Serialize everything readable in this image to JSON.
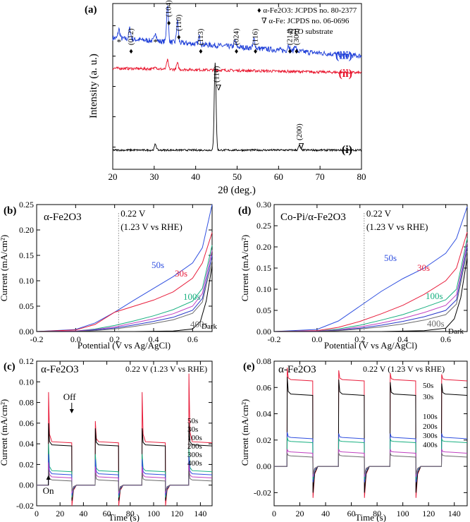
{
  "chart_data": [
    {
      "id": "a",
      "panel_label": "(a)",
      "type": "line",
      "title": "",
      "xlabel": "2θ (deg.)",
      "ylabel": "Intensity (a. u.)",
      "xlim": [
        20,
        80
      ],
      "xticks": [
        20,
        30,
        40,
        50,
        60,
        70,
        80
      ],
      "y_ticks_labeled": false,
      "legend": [
        "♦ α-Fe2O3: JCPDS no. 80-2377",
        "∇ α-Fe: JCPDS no. 06-0696",
        "*ITO substrate"
      ],
      "peak_labels_hematite": [
        {
          "label": "(012)",
          "x": 24.1
        },
        {
          "label": "(104)",
          "x": 33.2
        },
        {
          "label": "(110)",
          "x": 35.6
        },
        {
          "label": "(113)",
          "x": 40.9
        },
        {
          "label": "(024)",
          "x": 49.5
        },
        {
          "label": "(116)",
          "x": 54.1
        },
        {
          "label": "(214)",
          "x": 62.4
        },
        {
          "label": "(300)",
          "x": 64.0
        }
      ],
      "peak_labels_iron": [
        {
          "label": "(110)",
          "x": 44.7
        },
        {
          "label": "(200)",
          "x": 65.0
        }
      ],
      "ito_peaks": [
        21.5,
        30.3
      ],
      "series": [
        {
          "name": "(iii)",
          "color": "#1f3fd8",
          "baseline": 0.82,
          "slope": -0.12,
          "peaks": [
            [
              21.5,
              0.06
            ],
            [
              24.1,
              0.07
            ],
            [
              30.3,
              0.06
            ],
            [
              33.2,
              0.25
            ],
            [
              35.6,
              0.14
            ],
            [
              40.9,
              0.05
            ],
            [
              49.5,
              0.04
            ],
            [
              54.1,
              0.06
            ],
            [
              62.4,
              0.04
            ],
            [
              64.0,
              0.04
            ]
          ]
        },
        {
          "name": "(ii)",
          "color": "#e8132b",
          "baseline": 0.62,
          "slope": -0.03,
          "peaks": [
            [
              33.2,
              0.06
            ],
            [
              35.6,
              0.04
            ],
            [
              30.3,
              0.02
            ]
          ]
        },
        {
          "name": "(i)",
          "color": "#000000",
          "baseline": 0.08,
          "slope": 0.0,
          "peaks": [
            [
              30.3,
              0.04
            ],
            [
              44.7,
              0.58
            ],
            [
              65.0,
              0.03
            ]
          ]
        }
      ]
    },
    {
      "id": "b",
      "panel_label": "(b)",
      "type": "line",
      "title": "α-Fe2O3",
      "xlabel": "Potential (V vs Ag/AgCl)",
      "ylabel": "Current (mA/cm²)",
      "xlim": [
        -0.2,
        0.7
      ],
      "ylim": [
        0,
        0.25
      ],
      "xticks": [
        -0.2,
        0.0,
        0.2,
        0.4,
        0.6
      ],
      "yticks": [
        0.0,
        0.05,
        0.1,
        0.15,
        0.2,
        0.25
      ],
      "marker_line": {
        "x": 0.22,
        "label1": "0.22 V",
        "label2": "(1.23 V vs RHE)"
      },
      "series": [
        {
          "name": "50s",
          "color": "#3050e0",
          "points": [
            [
              -0.2,
              0
            ],
            [
              0.0,
              0.004
            ],
            [
              0.1,
              0.017
            ],
            [
              0.2,
              0.038
            ],
            [
              0.3,
              0.062
            ],
            [
              0.4,
              0.085
            ],
            [
              0.5,
              0.108
            ],
            [
              0.6,
              0.135
            ],
            [
              0.65,
              0.165
            ],
            [
              0.7,
              0.25
            ]
          ]
        },
        {
          "name": "30s",
          "color": "#e81e3c",
          "points": [
            [
              -0.2,
              0
            ],
            [
              0.0,
              0.003
            ],
            [
              0.1,
              0.014
            ],
            [
              0.2,
              0.038
            ],
            [
              0.3,
              0.05
            ],
            [
              0.4,
              0.062
            ],
            [
              0.5,
              0.078
            ],
            [
              0.6,
              0.105
            ],
            [
              0.65,
              0.135
            ],
            [
              0.7,
              0.195
            ]
          ]
        },
        {
          "name": "100s",
          "color": "#18b080",
          "points": [
            [
              -0.2,
              0
            ],
            [
              0.0,
              0.001
            ],
            [
              0.1,
              0.005
            ],
            [
              0.2,
              0.012
            ],
            [
              0.3,
              0.021
            ],
            [
              0.4,
              0.031
            ],
            [
              0.5,
              0.043
            ],
            [
              0.6,
              0.06
            ],
            [
              0.65,
              0.085
            ],
            [
              0.7,
              0.17
            ]
          ]
        },
        {
          "name": "200s",
          "color": "#c040c0",
          "points": [
            [
              -0.2,
              0
            ],
            [
              0.0,
              0.001
            ],
            [
              0.1,
              0.004
            ],
            [
              0.2,
              0.009
            ],
            [
              0.3,
              0.017
            ],
            [
              0.4,
              0.025
            ],
            [
              0.5,
              0.035
            ],
            [
              0.6,
              0.05
            ],
            [
              0.65,
              0.075
            ],
            [
              0.7,
              0.16
            ]
          ]
        },
        {
          "name": "300s",
          "color": "#2838c8",
          "points": [
            [
              -0.2,
              0
            ],
            [
              0.0,
              0.0
            ],
            [
              0.1,
              0.003
            ],
            [
              0.2,
              0.007
            ],
            [
              0.3,
              0.013
            ],
            [
              0.4,
              0.02
            ],
            [
              0.5,
              0.028
            ],
            [
              0.6,
              0.042
            ],
            [
              0.65,
              0.065
            ],
            [
              0.7,
              0.15
            ]
          ]
        },
        {
          "name": "400s",
          "color": "#6b6b6b",
          "points": [
            [
              -0.2,
              0
            ],
            [
              0.0,
              0.0
            ],
            [
              0.1,
              0.002
            ],
            [
              0.2,
              0.005
            ],
            [
              0.3,
              0.01
            ],
            [
              0.4,
              0.016
            ],
            [
              0.5,
              0.023
            ],
            [
              0.6,
              0.036
            ],
            [
              0.65,
              0.058
            ],
            [
              0.7,
              0.14
            ]
          ]
        },
        {
          "name": "Dark",
          "color": "#000000",
          "points": [
            [
              -0.2,
              0
            ],
            [
              0.3,
              0
            ],
            [
              0.5,
              0.001
            ],
            [
              0.6,
              0.005
            ],
            [
              0.64,
              0.02
            ],
            [
              0.67,
              0.06
            ],
            [
              0.7,
              0.13
            ]
          ]
        }
      ],
      "labels": [
        "50s",
        "30s",
        "100s",
        "400s",
        "Dark"
      ]
    },
    {
      "id": "d",
      "panel_label": "(d)",
      "type": "line",
      "title": "Co-Pi/α-Fe2O3",
      "xlabel": "Potential (V vs Ag/AgCl)",
      "ylabel": "Current (mA/cm²)",
      "xlim": [
        -0.2,
        0.7
      ],
      "ylim": [
        0,
        0.3
      ],
      "xticks": [
        -0.2,
        0.0,
        0.2,
        0.4,
        0.6
      ],
      "yticks": [
        0.0,
        0.05,
        0.1,
        0.15,
        0.2,
        0.25,
        0.3
      ],
      "marker_line": {
        "x": 0.22,
        "label1": "0.22 V",
        "label2": "(1.23 V vs RHE)"
      },
      "series": [
        {
          "name": "50s",
          "color": "#3050e0",
          "points": [
            [
              -0.2,
              0
            ],
            [
              0.0,
              0.005
            ],
            [
              0.1,
              0.025
            ],
            [
              0.2,
              0.06
            ],
            [
              0.3,
              0.095
            ],
            [
              0.4,
              0.125
            ],
            [
              0.5,
              0.15
            ],
            [
              0.6,
              0.185
            ],
            [
              0.65,
              0.22
            ],
            [
              0.7,
              0.295
            ]
          ]
        },
        {
          "name": "30s",
          "color": "#e81e3c",
          "points": [
            [
              -0.2,
              0
            ],
            [
              0.0,
              0.002
            ],
            [
              0.1,
              0.01
            ],
            [
              0.2,
              0.024
            ],
            [
              0.3,
              0.042
            ],
            [
              0.4,
              0.062
            ],
            [
              0.5,
              0.088
            ],
            [
              0.6,
              0.12
            ],
            [
              0.65,
              0.15
            ],
            [
              0.7,
              0.235
            ]
          ]
        },
        {
          "name": "100s",
          "color": "#18b080",
          "points": [
            [
              -0.2,
              0
            ],
            [
              0.0,
              0.001
            ],
            [
              0.1,
              0.006
            ],
            [
              0.2,
              0.015
            ],
            [
              0.3,
              0.027
            ],
            [
              0.4,
              0.04
            ],
            [
              0.5,
              0.057
            ],
            [
              0.6,
              0.075
            ],
            [
              0.65,
              0.1
            ],
            [
              0.7,
              0.22
            ]
          ]
        },
        {
          "name": "200s",
          "color": "#c040c0",
          "points": [
            [
              -0.2,
              0
            ],
            [
              0.0,
              0.001
            ],
            [
              0.1,
              0.004
            ],
            [
              0.2,
              0.011
            ],
            [
              0.3,
              0.02
            ],
            [
              0.4,
              0.031
            ],
            [
              0.5,
              0.045
            ],
            [
              0.6,
              0.062
            ],
            [
              0.65,
              0.087
            ],
            [
              0.7,
              0.21
            ]
          ]
        },
        {
          "name": "300s",
          "color": "#2838c8",
          "points": [
            [
              -0.2,
              0
            ],
            [
              0.0,
              0.0
            ],
            [
              0.1,
              0.003
            ],
            [
              0.2,
              0.008
            ],
            [
              0.3,
              0.015
            ],
            [
              0.4,
              0.024
            ],
            [
              0.5,
              0.035
            ],
            [
              0.6,
              0.05
            ],
            [
              0.65,
              0.075
            ],
            [
              0.7,
              0.2
            ]
          ]
        },
        {
          "name": "400s",
          "color": "#6b6b6b",
          "points": [
            [
              -0.2,
              0
            ],
            [
              0.0,
              0.0
            ],
            [
              0.1,
              0.002
            ],
            [
              0.2,
              0.006
            ],
            [
              0.3,
              0.011
            ],
            [
              0.4,
              0.018
            ],
            [
              0.5,
              0.027
            ],
            [
              0.6,
              0.04
            ],
            [
              0.65,
              0.065
            ],
            [
              0.7,
              0.19
            ]
          ]
        },
        {
          "name": "Dark",
          "color": "#000000",
          "points": [
            [
              -0.2,
              0
            ],
            [
              0.3,
              0
            ],
            [
              0.5,
              0.002
            ],
            [
              0.6,
              0.008
            ],
            [
              0.64,
              0.03
            ],
            [
              0.67,
              0.08
            ],
            [
              0.7,
              0.175
            ]
          ]
        }
      ],
      "labels": [
        "50s",
        "30s",
        "100s",
        "400s",
        "Dark"
      ]
    },
    {
      "id": "c",
      "panel_label": "(c)",
      "type": "line",
      "title": "α-Fe2O3",
      "annotation": "0.22 V (1.23 V vs RHE)",
      "xlabel": "Time (s)",
      "ylabel": "Current (mA/cm²)",
      "xlim": [
        0,
        150
      ],
      "ylim": [
        -0.02,
        0.12
      ],
      "xticks": [
        0,
        20,
        40,
        60,
        80,
        100,
        120,
        140
      ],
      "yticks": [
        -0.02,
        0.0,
        0.02,
        0.04,
        0.06,
        0.08,
        0.1,
        0.12
      ],
      "on_label": "On",
      "off_label": "Off",
      "light_on_times": [
        10,
        50,
        90,
        130
      ],
      "light_off_times": [
        30,
        70,
        110
      ],
      "series": [
        {
          "name": "50s",
          "color": "#e81e3c",
          "steady": 0.042,
          "spikes": [
            0.09,
            0.062,
            0.09,
            0.108
          ],
          "dark_dip": -0.02
        },
        {
          "name": "30s",
          "color": "#000000",
          "steady": 0.039,
          "spikes": [
            0.06,
            0.055,
            0.055,
            0.06
          ],
          "dark_dip": -0.015
        },
        {
          "name": "100s",
          "color": "#18b080",
          "steady": 0.014,
          "spikes": [
            0.04,
            0.03,
            0.03,
            0.035
          ],
          "dark_dip": -0.012
        },
        {
          "name": "200s",
          "color": "#3050e0",
          "steady": 0.011,
          "spikes": [
            0.03,
            0.025,
            0.025,
            0.028
          ],
          "dark_dip": -0.01
        },
        {
          "name": "300s",
          "color": "#c040c0",
          "steady": 0.008,
          "spikes": [
            0.022,
            0.018,
            0.018,
            0.02
          ],
          "dark_dip": -0.008
        },
        {
          "name": "400s",
          "color": "#6b6b6b",
          "steady": 0.005,
          "spikes": [
            0.015,
            0.012,
            0.012,
            0.014
          ],
          "dark_dip": -0.006
        }
      ]
    },
    {
      "id": "e",
      "panel_label": "(e)",
      "type": "line",
      "title": "α-Fe2O3",
      "annotation": "0.22 V (1.23 V vs RHE)",
      "xlabel": "Time (s)",
      "ylabel": "Current (mA/cm²)",
      "xlim": [
        0,
        150
      ],
      "ylim": [
        -0.03,
        0.08
      ],
      "xticks": [
        0,
        20,
        40,
        60,
        80,
        100,
        120,
        140
      ],
      "yticks": [
        -0.02,
        0.0,
        0.02,
        0.04,
        0.06,
        0.08
      ],
      "light_on_times": [
        10,
        50,
        90,
        130
      ],
      "light_off_times": [
        30,
        70,
        110
      ],
      "series": [
        {
          "name": "50s",
          "color": "#e81e3c",
          "steady": 0.066,
          "spikes": [
            0.075,
            0.073,
            0.071,
            0.07
          ],
          "dark_dip": -0.024
        },
        {
          "name": "30s",
          "color": "#000000",
          "steady": 0.055,
          "spikes": [
            0.068,
            0.066,
            0.064,
            0.063
          ],
          "dark_dip": -0.02
        },
        {
          "name": "100s",
          "color": "#3050e0",
          "steady": 0.022,
          "spikes": [
            0.026,
            0.025,
            0.025,
            0.025
          ],
          "dark_dip": -0.012
        },
        {
          "name": "200s",
          "color": "#18b080",
          "steady": 0.019,
          "spikes": [
            0.022,
            0.021,
            0.021,
            0.021
          ],
          "dark_dip": -0.01
        },
        {
          "name": "300s",
          "color": "#c040c0",
          "steady": 0.011,
          "spikes": [
            0.013,
            0.013,
            0.013,
            0.013
          ],
          "dark_dip": -0.008
        },
        {
          "name": "400s",
          "color": "#6b6b6b",
          "steady": 0.008,
          "spikes": [
            0.01,
            0.01,
            0.01,
            0.01
          ],
          "dark_dip": -0.006
        }
      ]
    }
  ]
}
